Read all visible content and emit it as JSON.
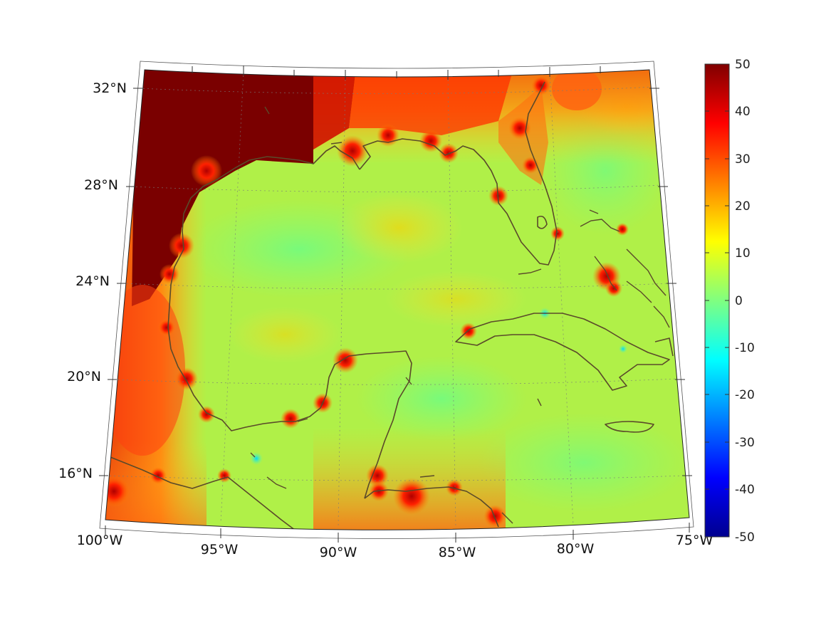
{
  "map": {
    "lat_labels": [
      "32°N",
      "28°N",
      "24°N",
      "20°N",
      "16°N"
    ],
    "lon_labels": [
      "100°W",
      "95°W",
      "90°W",
      "85°W",
      "80°W",
      "75°W"
    ],
    "colormap": "jet",
    "colors": {
      "land_hot": "#7a0000",
      "sea_mid": "#a8f050",
      "coast": "#5a4a2a"
    }
  },
  "colorbar": {
    "ticks": [
      "50",
      "40",
      "30",
      "20",
      "10",
      "0",
      "-10",
      "-20",
      "-30",
      "-40",
      "-50"
    ],
    "range": [
      -50,
      50
    ]
  }
}
